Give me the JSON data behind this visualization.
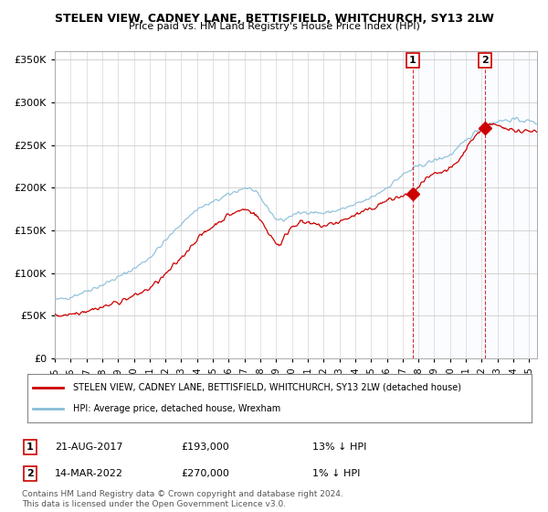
{
  "title": "STELEN VIEW, CADNEY LANE, BETTISFIELD, WHITCHURCH, SY13 2LW",
  "subtitle": "Price paid vs. HM Land Registry's House Price Index (HPI)",
  "ylim": [
    0,
    360000
  ],
  "yticks": [
    0,
    50000,
    100000,
    150000,
    200000,
    250000,
    300000,
    350000
  ],
  "ytick_labels": [
    "£0",
    "£50K",
    "£100K",
    "£150K",
    "£200K",
    "£250K",
    "£300K",
    "£350K"
  ],
  "xlim_start": 1995.0,
  "xlim_end": 2025.5,
  "hpi_color": "#89bdd8",
  "price_color": "#cc0000",
  "shade_color": "#ddeeff",
  "marker1_x": 2017.64,
  "marker1_y": 193000,
  "marker1_hpi_y": 221839,
  "marker1_label": "1",
  "marker1_date": "21-AUG-2017",
  "marker1_price": "£193,000",
  "marker1_hpi": "13% ↓ HPI",
  "marker2_x": 2022.2,
  "marker2_y": 270000,
  "marker2_hpi_y": 272700,
  "marker2_label": "2",
  "marker2_date": "14-MAR-2022",
  "marker2_price": "£270,000",
  "marker2_hpi": "1% ↓ HPI",
  "legend_line1": "STELEN VIEW, CADNEY LANE, BETTISFIELD, WHITCHURCH, SY13 2LW (detached house)",
  "legend_line2": "HPI: Average price, detached house, Wrexham",
  "footer1": "Contains HM Land Registry data © Crown copyright and database right 2024.",
  "footer2": "This data is licensed under the Open Government Licence v3.0.",
  "bg_color": "#ffffff",
  "grid_color": "#cccccc"
}
